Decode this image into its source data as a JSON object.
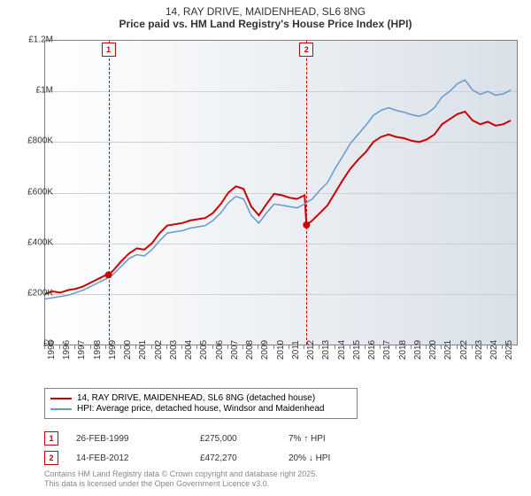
{
  "title": {
    "line1": "14, RAY DRIVE, MAIDENHEAD, SL6 8NG",
    "line2": "Price paid vs. HM Land Registry's House Price Index (HPI)"
  },
  "chart": {
    "type": "line",
    "background_gradient": [
      "#ffffff",
      "#d9e0e8"
    ],
    "border_color": "#808080",
    "grid_color": "#d0d0d0",
    "ylim": [
      0,
      1200000
    ],
    "ytick_step": 200000,
    "yticks": [
      "£0",
      "£200K",
      "£400K",
      "£600K",
      "£800K",
      "£1M",
      "£1.2M"
    ],
    "xlim": [
      1995,
      2025.9
    ],
    "xticks": [
      "1995",
      "1996",
      "1997",
      "1998",
      "1999",
      "2000",
      "2001",
      "2002",
      "2003",
      "2004",
      "2005",
      "2006",
      "2007",
      "2008",
      "2009",
      "2010",
      "2011",
      "2012",
      "2013",
      "2014",
      "2015",
      "2016",
      "2017",
      "2018",
      "2019",
      "2020",
      "2021",
      "2022",
      "2023",
      "2024",
      "2025"
    ],
    "series": [
      {
        "name": "14, RAY DRIVE, MAIDENHEAD, SL6 8NG (detached house)",
        "color": "#cc0000",
        "line_width": 2,
        "points": [
          [
            1995.0,
            200000
          ],
          [
            1995.5,
            210000
          ],
          [
            1996.0,
            205000
          ],
          [
            1996.5,
            215000
          ],
          [
            1997.0,
            220000
          ],
          [
            1997.5,
            230000
          ],
          [
            1998.0,
            245000
          ],
          [
            1998.5,
            260000
          ],
          [
            1999.0,
            275000
          ],
          [
            1999.15,
            275000
          ],
          [
            1999.5,
            295000
          ],
          [
            2000.0,
            330000
          ],
          [
            2000.5,
            360000
          ],
          [
            2001.0,
            380000
          ],
          [
            2001.5,
            375000
          ],
          [
            2002.0,
            400000
          ],
          [
            2002.5,
            440000
          ],
          [
            2003.0,
            470000
          ],
          [
            2003.5,
            475000
          ],
          [
            2004.0,
            480000
          ],
          [
            2004.5,
            490000
          ],
          [
            2005.0,
            495000
          ],
          [
            2005.5,
            500000
          ],
          [
            2006.0,
            520000
          ],
          [
            2006.5,
            555000
          ],
          [
            2007.0,
            600000
          ],
          [
            2007.5,
            625000
          ],
          [
            2008.0,
            615000
          ],
          [
            2008.5,
            545000
          ],
          [
            2009.0,
            510000
          ],
          [
            2009.5,
            555000
          ],
          [
            2010.0,
            595000
          ],
          [
            2010.5,
            590000
          ],
          [
            2011.0,
            580000
          ],
          [
            2011.5,
            575000
          ],
          [
            2012.0,
            590000
          ],
          [
            2012.12,
            472270
          ],
          [
            2012.5,
            490000
          ],
          [
            2013.0,
            520000
          ],
          [
            2013.5,
            550000
          ],
          [
            2014.0,
            600000
          ],
          [
            2014.5,
            650000
          ],
          [
            2015.0,
            695000
          ],
          [
            2015.5,
            730000
          ],
          [
            2016.0,
            760000
          ],
          [
            2016.5,
            800000
          ],
          [
            2017.0,
            820000
          ],
          [
            2017.5,
            830000
          ],
          [
            2018.0,
            820000
          ],
          [
            2018.5,
            815000
          ],
          [
            2019.0,
            805000
          ],
          [
            2019.5,
            800000
          ],
          [
            2020.0,
            810000
          ],
          [
            2020.5,
            830000
          ],
          [
            2021.0,
            870000
          ],
          [
            2021.5,
            890000
          ],
          [
            2022.0,
            910000
          ],
          [
            2022.5,
            920000
          ],
          [
            2023.0,
            885000
          ],
          [
            2023.5,
            870000
          ],
          [
            2024.0,
            880000
          ],
          [
            2024.5,
            865000
          ],
          [
            2025.0,
            870000
          ],
          [
            2025.5,
            885000
          ]
        ]
      },
      {
        "name": "HPI: Average price, detached house, Windsor and Maidenhead",
        "color": "#6699cc",
        "line_width": 1.5,
        "points": [
          [
            1995.0,
            180000
          ],
          [
            1995.5,
            185000
          ],
          [
            1996.0,
            190000
          ],
          [
            1996.5,
            195000
          ],
          [
            1997.0,
            205000
          ],
          [
            1997.5,
            215000
          ],
          [
            1998.0,
            230000
          ],
          [
            1998.5,
            245000
          ],
          [
            1999.0,
            260000
          ],
          [
            1999.5,
            280000
          ],
          [
            2000.0,
            310000
          ],
          [
            2000.5,
            340000
          ],
          [
            2001.0,
            355000
          ],
          [
            2001.5,
            350000
          ],
          [
            2002.0,
            375000
          ],
          [
            2002.5,
            410000
          ],
          [
            2003.0,
            440000
          ],
          [
            2003.5,
            445000
          ],
          [
            2004.0,
            450000
          ],
          [
            2004.5,
            460000
          ],
          [
            2005.0,
            465000
          ],
          [
            2005.5,
            470000
          ],
          [
            2006.0,
            490000
          ],
          [
            2006.5,
            520000
          ],
          [
            2007.0,
            560000
          ],
          [
            2007.5,
            585000
          ],
          [
            2008.0,
            575000
          ],
          [
            2008.5,
            510000
          ],
          [
            2009.0,
            480000
          ],
          [
            2009.5,
            520000
          ],
          [
            2010.0,
            555000
          ],
          [
            2010.5,
            550000
          ],
          [
            2011.0,
            545000
          ],
          [
            2011.5,
            540000
          ],
          [
            2012.0,
            555000
          ],
          [
            2012.5,
            575000
          ],
          [
            2013.0,
            610000
          ],
          [
            2013.5,
            640000
          ],
          [
            2014.0,
            695000
          ],
          [
            2014.5,
            745000
          ],
          [
            2015.0,
            795000
          ],
          [
            2015.5,
            830000
          ],
          [
            2016.0,
            865000
          ],
          [
            2016.5,
            905000
          ],
          [
            2017.0,
            925000
          ],
          [
            2017.5,
            935000
          ],
          [
            2018.0,
            925000
          ],
          [
            2018.5,
            918000
          ],
          [
            2019.0,
            908000
          ],
          [
            2019.5,
            902000
          ],
          [
            2020.0,
            912000
          ],
          [
            2020.5,
            935000
          ],
          [
            2021.0,
            978000
          ],
          [
            2021.5,
            1000000
          ],
          [
            2022.0,
            1030000
          ],
          [
            2022.5,
            1045000
          ],
          [
            2023.0,
            1005000
          ],
          [
            2023.5,
            988000
          ],
          [
            2024.0,
            1000000
          ],
          [
            2024.5,
            985000
          ],
          [
            2025.0,
            990000
          ],
          [
            2025.5,
            1005000
          ]
        ]
      }
    ],
    "markers": [
      {
        "label": "1",
        "x": 1999.15,
        "y": 275000,
        "color": "#cc0000"
      },
      {
        "label": "2",
        "x": 2012.12,
        "y": 472270,
        "color": "#cc0000"
      }
    ]
  },
  "legend": {
    "items": [
      {
        "label": "14, RAY DRIVE, MAIDENHEAD, SL6 8NG (detached house)",
        "color": "#cc0000"
      },
      {
        "label": "HPI: Average price, detached house, Windsor and Maidenhead",
        "color": "#6699cc"
      }
    ]
  },
  "transactions": [
    {
      "num": "1",
      "date": "26-FEB-1999",
      "price": "£275,000",
      "pct": "7% ↑ HPI"
    },
    {
      "num": "2",
      "date": "14-FEB-2012",
      "price": "£472,270",
      "pct": "20% ↓ HPI"
    }
  ],
  "footer": {
    "line1": "Contains HM Land Registry data © Crown copyright and database right 2025.",
    "line2": "This data is licensed under the Open Government Licence v3.0."
  }
}
